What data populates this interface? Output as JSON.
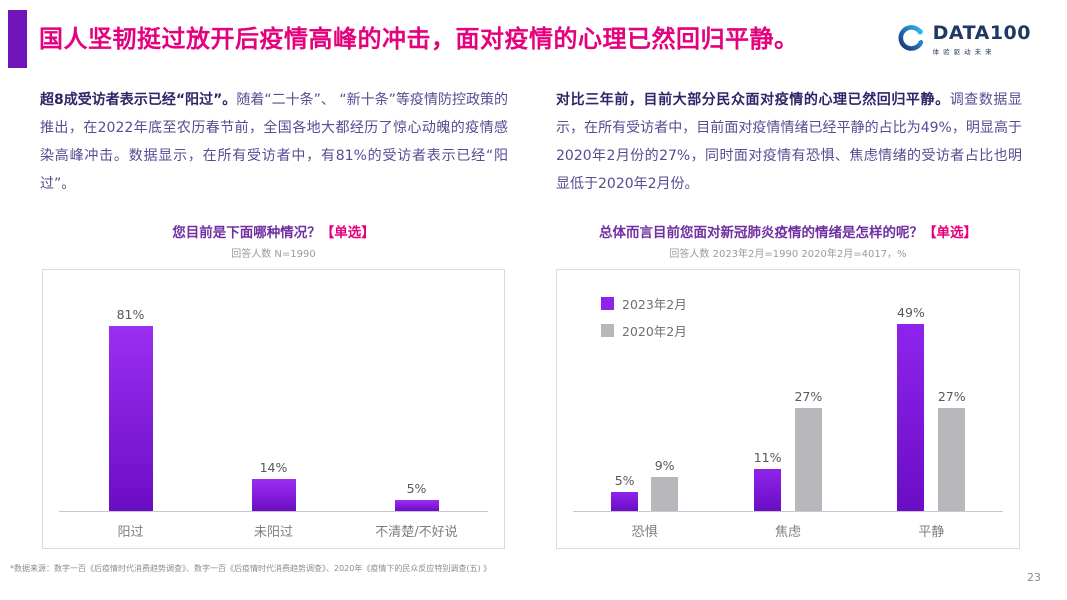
{
  "header": {
    "title": "国人坚韧挺过放开后疫情高峰的冲击，面对疫情的心理已然回归平静。",
    "logo": {
      "brand": "DATA100",
      "tagline": "体验驱动未来"
    }
  },
  "panels": {
    "left": {
      "lead": "超8成受访者表示已经“阳过”。",
      "body": "随着“二十条”、 “新十条”等疫情防控政策的推出，在2022年底至农历春节前，全国各地大都经历了惊心动魄的疫情感染高峰冲击。数据显示，在所有受访者中，有81%的受访者表示已经“阳过”。"
    },
    "right": {
      "lead": "对比三年前，目前大部分民众面对疫情的心理已然回归平静。",
      "body": "调查数据显示，在所有受访者中，目前面对疫情情绪已经平静的占比为49%，明显高于2020年2月份的27%，同时面对疫情有恐惧、焦虑情绪的受访者占比也明显低于2020年2月份。"
    }
  },
  "chart_data": [
    {
      "type": "bar",
      "title_main": "您目前是下面哪种情况？",
      "title_tag": "【单选】",
      "subtitle": "回答人数 N=1990",
      "categories": [
        "阳过",
        "未阳过",
        "不清楚/不好说"
      ],
      "values": [
        81,
        14,
        5
      ],
      "unit": "%",
      "xlabel": "",
      "ylabel": "",
      "ylim": [
        0,
        100
      ],
      "grid": false,
      "bar_color": "#9B2FF2",
      "bar_color2": "#6B0DC4"
    },
    {
      "type": "bar",
      "title_main": "总体而言目前您面对新冠肺炎疫情的情绪是怎样的呢？",
      "title_tag": "【单选】",
      "subtitle": "回答人数 2023年2月=1990   2020年2月=4017，%",
      "categories": [
        "恐惧",
        "焦虑",
        "平静"
      ],
      "series": [
        {
          "name": "2023年2月",
          "values": [
            5,
            11,
            49
          ],
          "color": "#8E24EC",
          "color2": "#6B0DC4"
        },
        {
          "name": "2020年2月",
          "values": [
            9,
            27,
            27
          ],
          "color": "#B7B7BC"
        }
      ],
      "unit": "%",
      "xlabel": "",
      "ylabel": "",
      "ylim": [
        0,
        60
      ],
      "grid": false,
      "legend_position": "top-left"
    }
  ],
  "footer": {
    "source": "*数据来源：数字一百《后疫情时代消费趋势调查》、数字一百《后疫情时代消费趋势调查》、2020年《疫情下的民众反应特别调查(五) 》",
    "page_number": "23"
  },
  "colors": {
    "title_magenta": "#E5007D",
    "accent_purple": "#7013B8",
    "chart_title_purple": "#7030A0",
    "body_text_purple": "#564C92",
    "bar_purple": "#8E24EC",
    "bar_purple_dark": "#6B0DC4",
    "bar_gray": "#B7B7BC",
    "logo_navy": "#1F3864",
    "logo_cyan": "#2BB5EA"
  }
}
